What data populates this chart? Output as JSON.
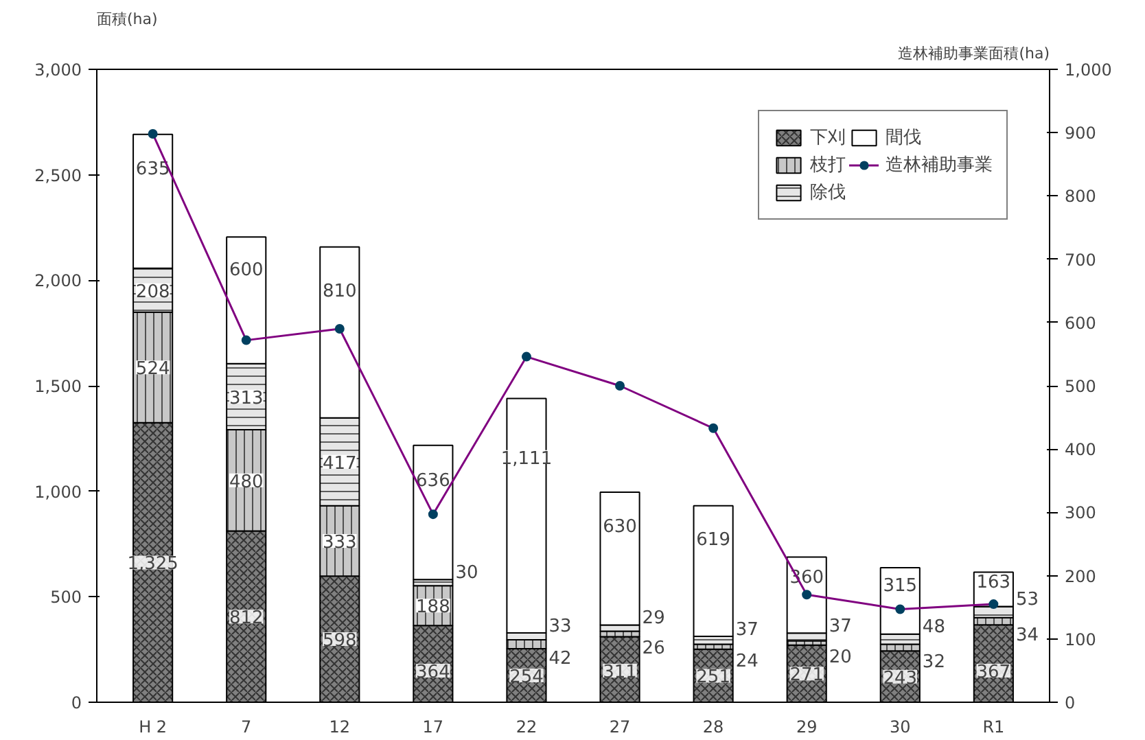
{
  "chart_data": {
    "type": "bar",
    "stacked": true,
    "ylabel": "面積(ha)",
    "y2label": "造林補助事業面積(ha)",
    "categories": [
      "H 2",
      "7",
      "12",
      "17",
      "22",
      "27",
      "28",
      "29",
      "30",
      "R1"
    ],
    "series": [
      {
        "name": "下刈",
        "color": "#808080",
        "values": [
          1325,
          812,
          598,
          364,
          254,
          311,
          251,
          271,
          243,
          367
        ],
        "value_labels": [
          "1,325",
          "812",
          "598",
          "364",
          "254",
          "311",
          "251",
          "271",
          "243",
          "367"
        ]
      },
      {
        "name": "枝打",
        "color": "#c8c8c8",
        "values": [
          524,
          480,
          333,
          188,
          42,
          26,
          24,
          20,
          32,
          34
        ],
        "value_labels": [
          "524",
          "480",
          "333",
          "188",
          "42",
          "26",
          "24",
          "20",
          "32",
          "34"
        ]
      },
      {
        "name": "除伐",
        "color": "#e6e6e6",
        "values": [
          208,
          313,
          417,
          30,
          33,
          29,
          37,
          37,
          48,
          53
        ],
        "value_labels": [
          "208",
          "313",
          "417",
          "30",
          "33",
          "29",
          "37",
          "37",
          "48",
          "53"
        ]
      },
      {
        "name": "間伐",
        "color": "#ffffff",
        "values": [
          635,
          600,
          810,
          636,
          1111,
          630,
          619,
          360,
          315,
          163
        ],
        "value_labels": [
          "635",
          "600",
          "810",
          "636",
          "1,111",
          "630",
          "619",
          "360",
          "315",
          "163"
        ]
      },
      {
        "name": "造林補助事業",
        "type": "line",
        "axis": "y2",
        "color": "#800080",
        "values": [
          898,
          572,
          590,
          297,
          546,
          500,
          433,
          170,
          147,
          155
        ]
      }
    ],
    "ylim": [
      0,
      3000
    ],
    "yticks": [
      {
        "value": 0,
        "label": "0"
      },
      {
        "value": 500,
        "label": "500"
      },
      {
        "value": 1000,
        "label": "1,000"
      },
      {
        "value": 1500,
        "label": "1,500"
      },
      {
        "value": 2000,
        "label": "2,000"
      },
      {
        "value": 2500,
        "label": "2,500"
      },
      {
        "value": 3000,
        "label": "3,000"
      }
    ],
    "y2lim": [
      0,
      1000
    ],
    "y2ticks": [
      {
        "value": 0,
        "label": "0"
      },
      {
        "value": 100,
        "label": "100"
      },
      {
        "value": 200,
        "label": "200"
      },
      {
        "value": 300,
        "label": "300"
      },
      {
        "value": 400,
        "label": "400"
      },
      {
        "value": 500,
        "label": "500"
      },
      {
        "value": 600,
        "label": "600"
      },
      {
        "value": 700,
        "label": "700"
      },
      {
        "value": 800,
        "label": "800"
      },
      {
        "value": 900,
        "label": "900"
      },
      {
        "value": 1000,
        "label": "1,000"
      }
    ],
    "legend": "top right",
    "grid": false,
    "marker": "circle"
  }
}
